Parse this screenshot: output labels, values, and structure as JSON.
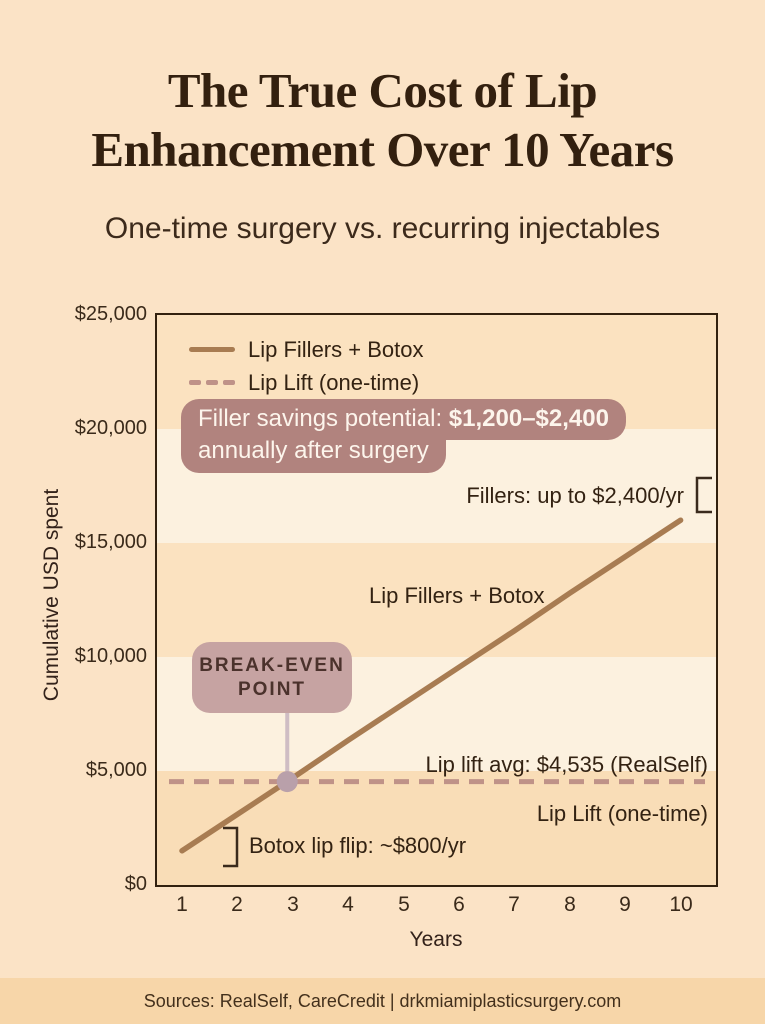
{
  "header": {
    "title_line1": "The True Cost of Lip",
    "title_line2": "Enhancement Over 10 Years",
    "subtitle": "One-time surgery vs. recurring injectables"
  },
  "legend": {
    "items": [
      {
        "label": "Lip Fillers + Botox",
        "style": "solid"
      },
      {
        "label": "Lip Lift (one-time)",
        "style": "dashed"
      }
    ]
  },
  "annotations": {
    "savings_bubble_line1_normal": "Filler savings potential: ",
    "savings_bubble_line1_bold": "$1,200–$2,400",
    "savings_bubble_line2": "annually after surgery",
    "fillers_note": "Fillers: up to $2,400/yr",
    "fillers_line_label": "Lip Fillers + Botox",
    "lip_lift_avg_note": "Lip lift avg: $4,535 (RealSelf)",
    "lip_lift_line_label": "Lip Lift (one-time)",
    "botox_note": "Botox lip flip: ~$800/yr",
    "break_even_line1": "BREAK-EVEN",
    "break_even_line2": "POINT"
  },
  "chart_data": {
    "type": "line",
    "xlabel": "Years",
    "ylabel": "Cumulative USD spent",
    "x": [
      1,
      2,
      3,
      4,
      5,
      6,
      7,
      8,
      9,
      10
    ],
    "x_tick_labels": [
      "1",
      "2",
      "3",
      "4",
      "5",
      "6",
      "7",
      "8",
      "9",
      "10"
    ],
    "y_tick_labels": [
      "$0",
      "$5,000",
      "$10,000",
      "$15,000",
      "$20,000",
      "$25,000"
    ],
    "y_tick_values": [
      0,
      5000,
      10000,
      15000,
      20000,
      25000
    ],
    "ylim": [
      0,
      25000
    ],
    "grid": "alternating horizontal bands every $5,000",
    "legend_position": "top-left inside plot",
    "series": [
      {
        "name": "Lip Fillers + Botox",
        "style": "solid",
        "color": "#a87c52",
        "values": [
          1500,
          3100,
          4700,
          6350,
          7950,
          9550,
          11150,
          12800,
          14400,
          16000
        ]
      },
      {
        "name": "Lip Lift (one-time)",
        "style": "dashed",
        "color": "#bf9288",
        "constant": true,
        "values": [
          4535,
          4535,
          4535,
          4535,
          4535,
          4535,
          4535,
          4535,
          4535,
          4535
        ]
      }
    ],
    "break_even": {
      "year": 2.9,
      "value": 4535,
      "label": "BREAK-EVEN POINT"
    },
    "callouts": {
      "filler_savings_annual_range": [
        1200,
        2400
      ],
      "fillers_cost_per_year_max": 2400,
      "botox_lip_flip_per_year": 800,
      "lip_lift_average_cost": 4535,
      "lip_lift_source": "RealSelf"
    }
  },
  "footer": {
    "text": "Sources: RealSelf, CareCredit | drkmiamiplasticsurgery.com"
  },
  "colors": {
    "page_bg": "#fbe3c6",
    "stripe_peach": "#fbe2c0",
    "stripe_cream": "#fcf1df",
    "footer_bg": "#f7d6a9",
    "title_text": "#33200f",
    "fillers_line": "#a87c52",
    "lip_lift_line": "#bf9288",
    "bubble_bg": "#b1837e",
    "break_even_box_bg": "#c6a3a2",
    "break_even_dot": "#b9a0aa",
    "break_even_stem": "#cfbdc4",
    "plot_border": "#32210f"
  }
}
